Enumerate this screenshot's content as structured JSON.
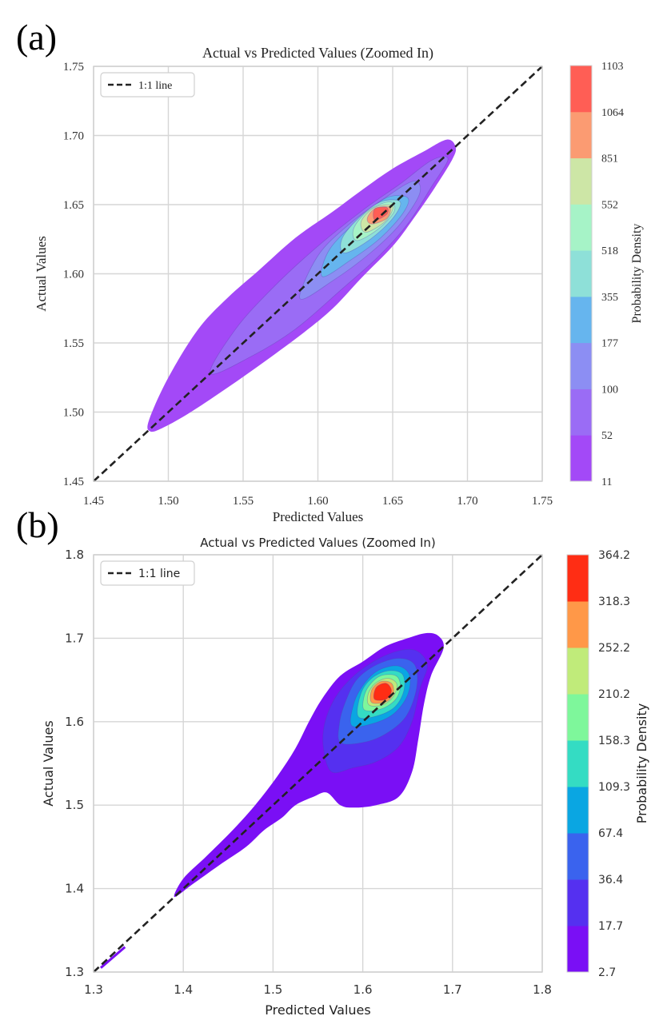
{
  "chart_data": [
    {
      "panel_label": "(a)",
      "type": "contourf",
      "title": "Actual vs Predicted Values (Zoomed In)",
      "xlabel": "Predicted Values",
      "ylabel": "Actual Values",
      "xlim": [
        1.45,
        1.75
      ],
      "ylim": [
        1.45,
        1.75
      ],
      "xticks": [
        "1.45",
        "1.50",
        "1.55",
        "1.60",
        "1.65",
        "1.70",
        "1.75"
      ],
      "yticks": [
        "1.45",
        "1.50",
        "1.55",
        "1.60",
        "1.65",
        "1.70",
        "1.75"
      ],
      "legend": {
        "label": "1:1 line",
        "placement": "top-left"
      },
      "reference_line": {
        "from": [
          1.45,
          1.45
        ],
        "to": [
          1.75,
          1.75
        ],
        "style": "dashed",
        "color": "#222222"
      },
      "colorbar": {
        "label": "Probability Density",
        "levels": [
          "11",
          "52",
          "100",
          "177",
          "355",
          "518",
          "552",
          "851",
          "1064",
          "1103"
        ],
        "colors": [
          "#a349f7",
          "#9a6cf5",
          "#8c8ef3",
          "#66b5ee",
          "#8ee0d8",
          "#a6f3c7",
          "#cde6a6",
          "#fb9b72",
          "#ff5e55"
        ]
      },
      "density_peak": {
        "x": 1.64,
        "y": 1.64
      },
      "grid": true
    },
    {
      "panel_label": "(b)",
      "type": "contourf",
      "title": "Actual vs Predicted Values (Zoomed In)",
      "xlabel": "Predicted Values",
      "ylabel": "Actual Values",
      "xlim": [
        1.3,
        1.8
      ],
      "ylim": [
        1.3,
        1.8
      ],
      "xticks": [
        "1.3",
        "1.4",
        "1.5",
        "1.6",
        "1.7",
        "1.8"
      ],
      "yticks": [
        "1.3",
        "1.4",
        "1.5",
        "1.6",
        "1.7",
        "1.8"
      ],
      "legend": {
        "label": "1:1 line",
        "placement": "top-left"
      },
      "reference_line": {
        "from": [
          1.3,
          1.3
        ],
        "to": [
          1.8,
          1.8
        ],
        "style": "dashed",
        "color": "#222222"
      },
      "colorbar": {
        "label": "Probability Density",
        "levels": [
          "2.7",
          "17.7",
          "36.4",
          "67.4",
          "109.3",
          "158.3",
          "210.2",
          "252.2",
          "318.3",
          "364.2"
        ],
        "colors": [
          "#7a0ff5",
          "#5530f0",
          "#3a63ee",
          "#0aa6e2",
          "#34dcc3",
          "#7ef79b",
          "#c0eb7a",
          "#ff9848",
          "#ff2d14"
        ]
      },
      "density_peak": {
        "x": 1.625,
        "y": 1.635
      },
      "grid": true
    }
  ]
}
